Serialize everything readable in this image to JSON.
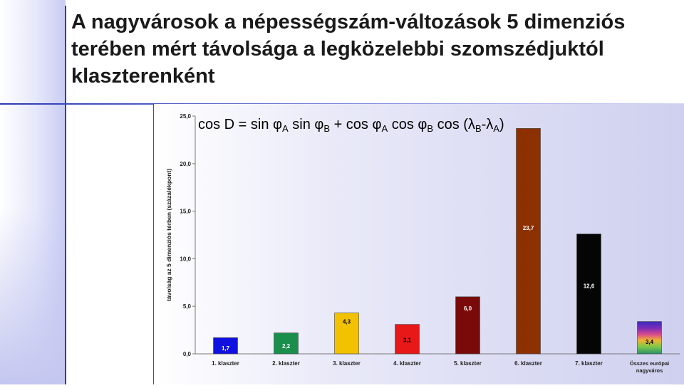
{
  "slide": {
    "title": "A nagyvárosok a népességszám-változások 5 dimenziós terében mért távolsága a legközelebbi szomszédjuktól klaszterenként"
  },
  "formula": {
    "p1": "cos D = sin φ",
    "s1": "A",
    "p2": "  sin φ",
    "s2": "B",
    "p3": " + cos φ",
    "s3": "A",
    "p4": "  cos φ",
    "s4": "B",
    "p5": "  cos (λ",
    "s5": "B",
    "p6": "-λ",
    "s6": "A",
    "p7": ")"
  },
  "chart_data": {
    "type": "bar",
    "ylabel": "távolság az 5 dimenziós térben (százalékpont)",
    "ylim": [
      0,
      25
    ],
    "yticks": [
      "0,0",
      "5,0",
      "10,0",
      "15,0",
      "20,0",
      "25,0"
    ],
    "categories": [
      "1. klaszter",
      "2. klaszter",
      "3. klaszter",
      "4. klaszter",
      "5. klaszter",
      "6. klaszter",
      "7. klaszter",
      "Összes európai nagyváros"
    ],
    "values": [
      1.7,
      2.2,
      4.3,
      3.1,
      6.0,
      23.7,
      12.6,
      3.4
    ],
    "value_labels": [
      "1,7",
      "2,2",
      "4,3",
      "3,1",
      "6,0",
      "23,7",
      "12,6",
      "3,4"
    ],
    "colors": [
      "#1010e0",
      "#1a8f4c",
      "#f2c200",
      "#e81818",
      "#7a0a0a",
      "#8c3000",
      "#050505",
      "rainbow"
    ],
    "label_colors": [
      "#ffffff",
      "#ffffff",
      "#000000",
      "#000000",
      "#ffffff",
      "#ffffff",
      "#ffffff",
      "#000000"
    ],
    "grid": false,
    "background": "#cfd0ef"
  }
}
